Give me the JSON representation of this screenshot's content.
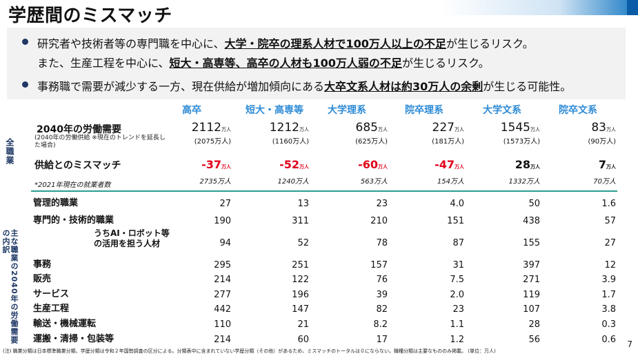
{
  "header": {
    "title": "学歴間のミスマッチ"
  },
  "summary": {
    "b1_pre": "研究者や技術者等の専門職を中心に、",
    "b1_em": "大学・院卒の理系人材で100万人以上の不足",
    "b1_post": "が生じるリスク。",
    "b2_pre": "また、生産工程を中心に、",
    "b2_em": "短大・高専等、高卒の人材も100万人弱の不足",
    "b2_post": "が生じるリスク。",
    "b3_pre": "事務職で需要が減少する一方、現在供給が増加傾向にある",
    "b3_em": "大卒文系人材は約30万人の余剰",
    "b3_post": "が生じる可能性。"
  },
  "side_labels": {
    "all_jobs": "全職業",
    "main_jobs": "主な職業の2040年の労働需要の内訳"
  },
  "columns": [
    "高卒",
    "短大・高専等",
    "大学理系",
    "院卒理系",
    "大学文系",
    "院卒文系"
  ],
  "unit_suffix": "万人",
  "labor_demand": {
    "label": "2040年の労働需要",
    "sub": "(2040年の労働供給 ※現在のトレンドを延長した場合)",
    "demand": [
      "2112",
      "1212",
      "685",
      "227",
      "1545",
      "83"
    ],
    "supply": [
      "(2075万人)",
      "(1160万人)",
      "(625万人)",
      "(181万人)",
      "(1573万人)",
      "(90万人)"
    ]
  },
  "mismatch": {
    "label": "供給とのミスマッチ",
    "values": [
      "-37",
      "-52",
      "-60",
      "-47",
      "28",
      "7"
    ],
    "colors": [
      "#e0001a",
      "#e0001a",
      "#e0001a",
      "#e0001a",
      "#111111",
      "#111111"
    ]
  },
  "employed_2021": {
    "label": "*2021年現在の就業者数",
    "values": [
      "2735万人",
      "1240万人",
      "563万人",
      "154万人",
      "1332万人",
      "70万人"
    ]
  },
  "jobs": [
    {
      "name": "管理的職業",
      "values": [
        "27",
        "13",
        "23",
        "4.0",
        "50",
        "1.6"
      ]
    },
    {
      "name": "専門的・技術的職業",
      "values": [
        "190",
        "311",
        "210",
        "151",
        "438",
        "57"
      ]
    },
    {
      "name": "うちAI・ロボット等\nの活用を担う人材",
      "values": [
        "94",
        "52",
        "78",
        "87",
        "155",
        "27"
      ]
    },
    {
      "name": "事務",
      "values": [
        "295",
        "251",
        "157",
        "31",
        "397",
        "12"
      ]
    },
    {
      "name": "販売",
      "values": [
        "214",
        "122",
        "76",
        "7.5",
        "271",
        "3.9"
      ]
    },
    {
      "name": "サービス",
      "values": [
        "277",
        "196",
        "39",
        "2.0",
        "119",
        "1.7"
      ]
    },
    {
      "name": "生産工程",
      "values": [
        "442",
        "147",
        "82",
        "23",
        "107",
        "3.8"
      ]
    },
    {
      "name": "輸送・機械運転",
      "values": [
        "110",
        "21",
        "8.2",
        "1.1",
        "28",
        "0.3"
      ]
    },
    {
      "name": "運搬・清掃・包装等",
      "values": [
        "214",
        "60",
        "17",
        "1.2",
        "56",
        "0.6"
      ]
    }
  ],
  "footnote": "(注) 職業分類は日本標準職業分類、学歴分類は令和２年国勢調査の区分による。分類表中に含まれていない学歴分類（その他）があるため、ミスマッチのトータルは０にならない。職種分類は主要なもののみ掲載。 (単位：万人)",
  "page_number": "7"
}
